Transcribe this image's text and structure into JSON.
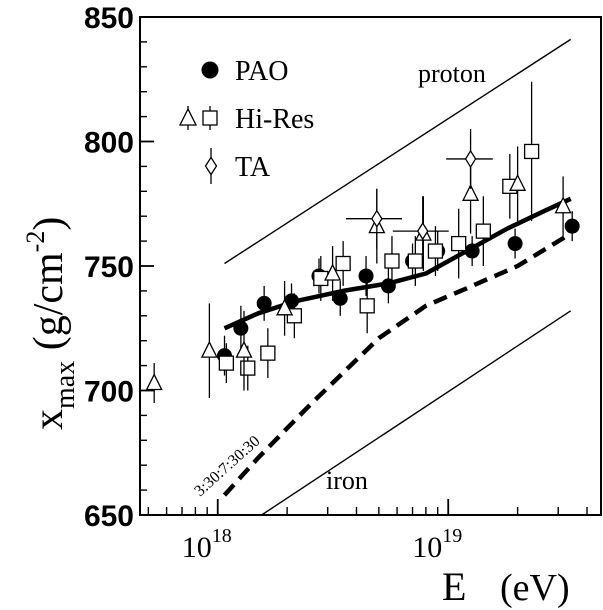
{
  "chart_data": {
    "type": "scatter",
    "title": "",
    "xlabel": "E",
    "xlabel_unit": "(eV)",
    "ylabel_main": "x",
    "ylabel_sub": "max",
    "ylabel_unit": "(g/cm",
    "ylabel_exp": "-2",
    "ylabel_close": ")",
    "xscale": "log",
    "xlim": [
      4.6e+17,
      4.6e+19
    ],
    "ylim": [
      650,
      850
    ],
    "grid": false,
    "legend_position": "top-left",
    "y_ticks": [
      {
        "value": 650,
        "label": "650"
      },
      {
        "value": 700,
        "label": "700"
      },
      {
        "value": 750,
        "label": "750"
      },
      {
        "value": 800,
        "label": "800"
      },
      {
        "value": 850,
        "label": "850"
      }
    ],
    "x_ticks": [
      {
        "value": 1e+18,
        "base": "10",
        "exp": "18"
      },
      {
        "value": 1e+19,
        "base": "10",
        "exp": "19"
      }
    ],
    "series": [
      {
        "name": "PAO",
        "marker": "filled-circle",
        "points": [
          {
            "x": 1.07e+18,
            "y": 714,
            "yerr": 8
          },
          {
            "x": 1.26e+18,
            "y": 725,
            "yerr": 9
          },
          {
            "x": 1.59e+18,
            "y": 735,
            "yerr": 7
          },
          {
            "x": 2.09e+18,
            "y": 736,
            "yerr": 7
          },
          {
            "x": 2.75e+18,
            "y": 746,
            "yerr": 7
          },
          {
            "x": 3.4e+18,
            "y": 737,
            "yerr": 7
          },
          {
            "x": 4.4e+18,
            "y": 746,
            "yerr": 8
          },
          {
            "x": 5.5e+18,
            "y": 742,
            "yerr": 7
          },
          {
            "x": 7e+18,
            "y": 752,
            "yerr": 7
          },
          {
            "x": 9e+18,
            "y": 756,
            "yerr": 8
          },
          {
            "x": 1.27e+19,
            "y": 756,
            "yerr": 6
          },
          {
            "x": 1.95e+19,
            "y": 759,
            "yerr": 6
          },
          {
            "x": 3.45e+19,
            "y": 766,
            "yerr": 6
          }
        ]
      },
      {
        "name": "Hi-Res",
        "marker": "open-square",
        "points": [
          {
            "x": 1.09e+18,
            "y": 711,
            "yerr": 8
          },
          {
            "x": 1.35e+18,
            "y": 709,
            "yerr": 9
          },
          {
            "x": 1.65e+18,
            "y": 715,
            "yerr": 10
          },
          {
            "x": 2.15e+18,
            "y": 730,
            "yerr": 9
          },
          {
            "x": 2.8e+18,
            "y": 745,
            "yerr": 9
          },
          {
            "x": 3.5e+18,
            "y": 751,
            "yerr": 9
          },
          {
            "x": 4.45e+18,
            "y": 734,
            "yerr": 11
          },
          {
            "x": 5.7e+18,
            "y": 752,
            "yerr": 10
          },
          {
            "x": 7.2e+18,
            "y": 752,
            "yerr": 10
          },
          {
            "x": 8.8e+18,
            "y": 756,
            "yerr": 10
          },
          {
            "x": 1.11e+19,
            "y": 759,
            "yerr": 14
          },
          {
            "x": 1.42e+19,
            "y": 764,
            "yerr": 14
          },
          {
            "x": 1.85e+19,
            "y": 782,
            "yerr": 13
          },
          {
            "x": 2.3e+19,
            "y": 796,
            "yerr": 28
          }
        ]
      },
      {
        "name": "Hi-Res",
        "marker": "open-triangle",
        "points": [
          {
            "x": 5.3e+17,
            "y": 703,
            "yerr": 8
          },
          {
            "x": 9.2e+17,
            "y": 716,
            "yerr": 19
          },
          {
            "x": 1.3e+18,
            "y": 716,
            "yerr": 16
          },
          {
            "x": 1.95e+18,
            "y": 733,
            "yerr": 11
          },
          {
            "x": 3.15e+18,
            "y": 747,
            "yerr": 11
          },
          {
            "x": 4.9e+18,
            "y": 766,
            "yerr": 15
          },
          {
            "x": 7.8e+18,
            "y": 763,
            "yerr": 15
          },
          {
            "x": 1.25e+19,
            "y": 779,
            "yerr": 16
          },
          {
            "x": 2e+19,
            "y": 783,
            "yerr": 15
          },
          {
            "x": 3.15e+19,
            "y": 774,
            "yerr": 12
          }
        ]
      },
      {
        "name": "TA",
        "marker": "open-diamond",
        "points": [
          {
            "x": 4.9e+18,
            "y": 769,
            "yerr": 12,
            "xerr_lo": 1.3e+18,
            "xerr_hi": 1.4e+18
          },
          {
            "x": 7.75e+18,
            "y": 764,
            "yerr": 14,
            "xerr_lo": 2e+18,
            "xerr_hi": 2.3e+18
          },
          {
            "x": 1.25e+19,
            "y": 793,
            "yerr": 12,
            "xerr_lo": 2.7e+18,
            "xerr_hi": 3.1e+18
          }
        ]
      }
    ],
    "curves": [
      {
        "label": "",
        "style": "thick-solid",
        "points": [
          [
            1.07e+18,
            725
          ],
          [
            1.5e+18,
            731
          ],
          [
            2.2e+18,
            736
          ],
          [
            3.5e+18,
            740
          ],
          [
            5.5e+18,
            743
          ],
          [
            8e+18,
            747
          ],
          [
            1.2e+19,
            756
          ],
          [
            1.8e+19,
            765
          ],
          [
            2.6e+19,
            772
          ],
          [
            3.4e+19,
            777
          ]
        ]
      },
      {
        "label": "3:30:7:30:30",
        "style": "thick-dashed",
        "points": [
          [
            1.07e+18,
            658
          ],
          [
            1.5e+18,
            673
          ],
          [
            2.5e+18,
            694
          ],
          [
            5e+18,
            721
          ],
          [
            8e+18,
            734
          ],
          [
            1.2e+19,
            741
          ],
          [
            2e+19,
            750
          ],
          [
            3.4e+19,
            763
          ]
        ]
      },
      {
        "label": "proton",
        "style": "thin-solid",
        "points": [
          [
            1.07e+18,
            751
          ],
          [
            3.4e+19,
            841
          ]
        ]
      },
      {
        "label": "iron",
        "style": "thin-solid",
        "points": [
          [
            1.55e+18,
            650
          ],
          [
            3.4e+19,
            732
          ]
        ]
      }
    ]
  }
}
